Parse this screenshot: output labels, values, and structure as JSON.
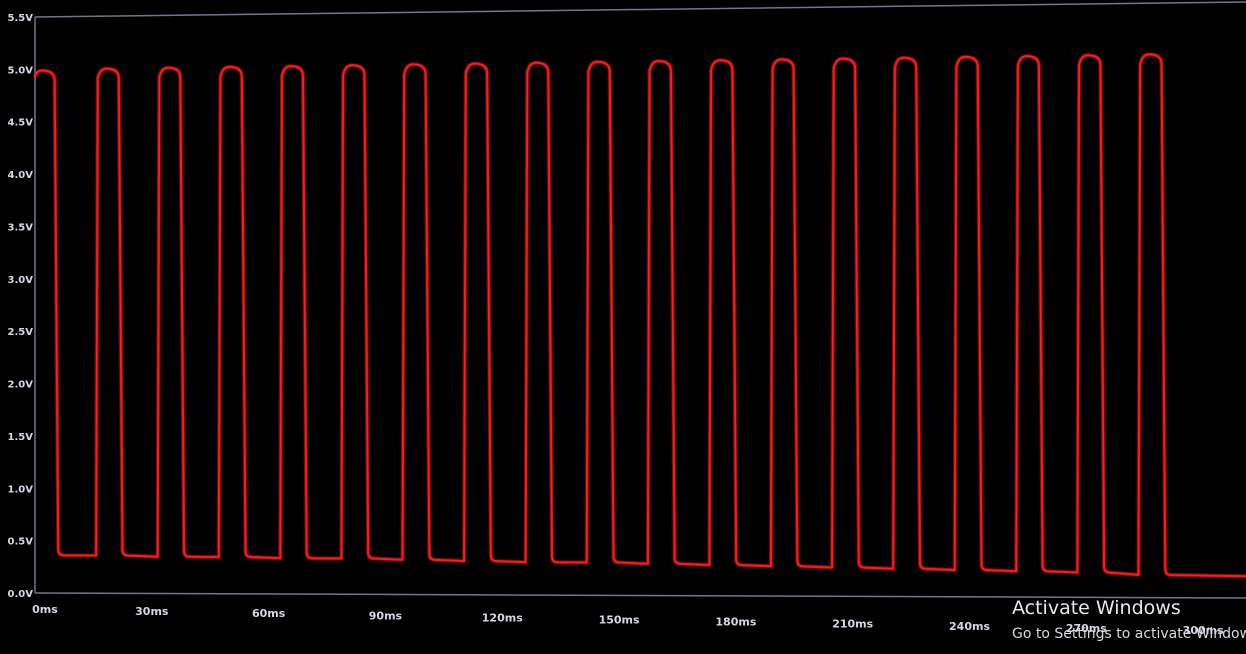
{
  "chart_data": {
    "type": "line",
    "title": "",
    "xlabel": "",
    "ylabel": "",
    "x_ticks": [
      "0ms",
      "30ms",
      "60ms",
      "90ms",
      "120ms",
      "150ms",
      "180ms",
      "210ms",
      "240ms",
      "270ms",
      "300ms"
    ],
    "y_ticks": [
      "0.0V",
      "0.5V",
      "1.0V",
      "1.5V",
      "2.0V",
      "2.5V",
      "3.0V",
      "3.5V",
      "4.0V",
      "4.5V",
      "5.0V",
      "5.5V"
    ],
    "xlim": [
      0,
      311
    ],
    "ylim": [
      0,
      5.5
    ],
    "grid": false,
    "legend": "none",
    "line_color": "#ff1a1a",
    "background": "#000000",
    "series": [
      {
        "pulses": [
          {
            "rise": 0,
            "fall": 5.2,
            "high": 4.99,
            "low": 0.36
          },
          {
            "rise": 15.7,
            "fall": 21.7,
            "high": 5.01,
            "low": 0.36
          },
          {
            "rise": 31.5,
            "fall": 37.5,
            "high": 5.02,
            "low": 0.35
          },
          {
            "rise": 47.2,
            "fall": 53.3,
            "high": 5.03,
            "low": 0.35
          },
          {
            "rise": 63.0,
            "fall": 69.0,
            "high": 5.04,
            "low": 0.34
          },
          {
            "rise": 78.7,
            "fall": 84.8,
            "high": 5.05,
            "low": 0.34
          },
          {
            "rise": 94.4,
            "fall": 100.5,
            "high": 5.06,
            "low": 0.33
          },
          {
            "rise": 110.2,
            "fall": 116.3,
            "high": 5.07,
            "low": 0.32
          },
          {
            "rise": 126.0,
            "fall": 132.0,
            "high": 5.08,
            "low": 0.31
          },
          {
            "rise": 141.7,
            "fall": 147.8,
            "high": 5.09,
            "low": 0.31
          },
          {
            "rise": 157.4,
            "fall": 163.5,
            "high": 5.1,
            "low": 0.3
          },
          {
            "rise": 173.2,
            "fall": 179.3,
            "high": 5.11,
            "low": 0.29
          },
          {
            "rise": 189.0,
            "fall": 195.0,
            "high": 5.12,
            "low": 0.28
          },
          {
            "rise": 204.7,
            "fall": 210.8,
            "high": 5.13,
            "low": 0.27
          },
          {
            "rise": 220.4,
            "fall": 226.5,
            "high": 5.14,
            "low": 0.26
          },
          {
            "rise": 236.2,
            "fall": 242.3,
            "high": 5.15,
            "low": 0.25
          },
          {
            "rise": 252.0,
            "fall": 258.0,
            "high": 5.16,
            "low": 0.24
          },
          {
            "rise": 267.7,
            "fall": 273.8,
            "high": 5.17,
            "low": 0.23
          },
          {
            "rise": 283.4,
            "fall": 289.5,
            "high": 5.18,
            "low": 0.21
          }
        ],
        "end_x": 311,
        "end_low": 0.2
      }
    ]
  },
  "watermark": {
    "title": "Activate Windows",
    "subtitle": "Go to Settings to activate Windows."
  }
}
